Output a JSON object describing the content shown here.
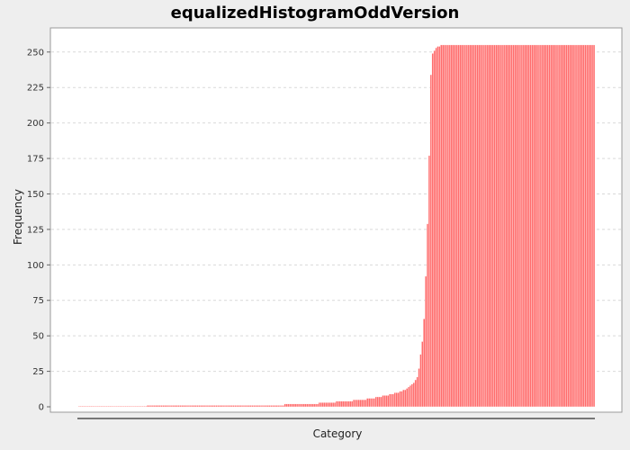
{
  "chart_data": {
    "type": "bar",
    "title": "equalizedHistogramOddVersion",
    "xlabel": "Category",
    "ylabel": "Frequency",
    "ylim": [
      0,
      267
    ],
    "yticks": [
      0,
      25,
      50,
      75,
      100,
      125,
      150,
      175,
      200,
      225,
      250
    ],
    "grid": true,
    "legend": "none",
    "bar_color": "#ff6b6b",
    "bar_edge_color": "#ffffff",
    "plot_background": "#ffffff",
    "grid_color": "#d9d9d9",
    "series": [
      {
        "values": [
          0,
          0,
          0,
          0,
          0,
          0,
          0,
          0,
          0,
          0,
          0,
          0,
          0,
          0,
          0,
          0,
          0,
          0,
          0,
          0,
          0,
          0,
          0,
          0,
          0,
          0,
          0,
          0,
          0,
          0,
          0,
          0,
          0,
          0,
          0,
          0,
          0,
          0,
          0,
          0,
          1,
          1,
          1,
          1,
          1,
          1,
          1,
          1,
          1,
          1,
          1,
          1,
          1,
          1,
          1,
          1,
          1,
          1,
          1,
          1,
          1,
          1,
          1,
          1,
          1,
          1,
          1,
          1,
          1,
          1,
          1,
          1,
          1,
          1,
          1,
          1,
          1,
          1,
          1,
          1,
          1,
          1,
          1,
          1,
          1,
          1,
          1,
          1,
          1,
          1,
          1,
          1,
          1,
          1,
          1,
          1,
          1,
          1,
          1,
          1,
          1,
          1,
          1,
          1,
          1,
          1,
          1,
          1,
          1,
          1,
          1,
          1,
          1,
          1,
          1,
          1,
          1,
          1,
          1,
          1,
          2,
          2,
          2,
          2,
          2,
          2,
          2,
          2,
          2,
          2,
          2,
          2,
          2,
          2,
          2,
          2,
          2,
          2,
          2,
          2,
          3,
          3,
          3,
          3,
          3,
          3,
          3,
          3,
          3,
          3,
          4,
          4,
          4,
          4,
          4,
          4,
          4,
          4,
          4,
          4,
          5,
          5,
          5,
          5,
          5,
          5,
          5,
          5,
          6,
          6,
          6,
          6,
          6,
          7,
          7,
          7,
          7,
          8,
          8,
          8,
          8,
          9,
          9,
          9,
          10,
          10,
          10,
          11,
          11,
          12,
          12,
          13,
          14,
          15,
          16,
          17,
          19,
          21,
          27,
          37,
          46,
          62,
          92,
          129,
          177,
          234,
          249,
          251,
          253,
          254,
          254,
          255,
          255,
          255,
          255,
          255,
          255,
          255,
          255,
          255,
          255,
          255,
          255,
          255,
          255,
          255,
          255,
          255,
          255,
          255,
          255,
          255,
          255,
          255,
          255,
          255,
          255,
          255,
          255,
          255,
          255,
          255,
          255,
          255,
          255,
          255,
          255,
          255,
          255,
          255,
          255,
          255,
          255,
          255,
          255,
          255,
          255,
          255,
          255,
          255,
          255,
          255,
          255,
          255,
          255,
          255,
          255,
          255,
          255,
          255,
          255,
          255,
          255,
          255,
          255,
          255,
          255,
          255,
          255,
          255,
          255,
          255,
          255,
          255,
          255,
          255,
          255,
          255,
          255,
          255,
          255,
          255,
          255,
          255,
          255,
          255,
          255,
          255,
          255,
          255,
          255
        ]
      }
    ]
  }
}
